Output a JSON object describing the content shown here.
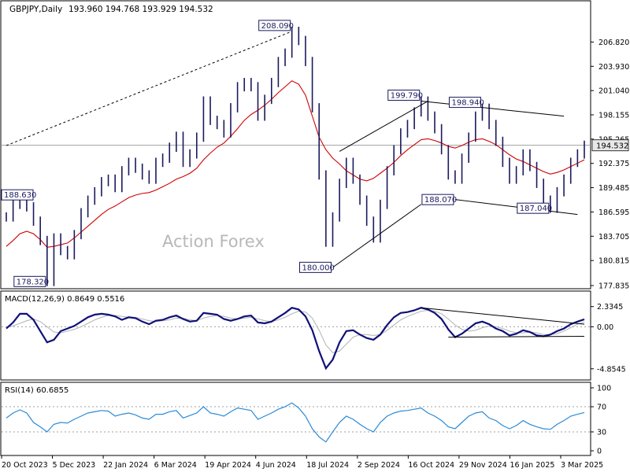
{
  "chart_data": {
    "type": "line",
    "header": {
      "symbol": "GBPJPY,Daily",
      "ohlc": "193.960 194.768 193.929 194.532"
    },
    "watermark": "Action Forex",
    "x_ticks": [
      "20 Oct 2023",
      "5 Dec 2023",
      "22 Jan 2024",
      "6 Mar 2024",
      "19 Apr 2024",
      "4 Jun 2024",
      "18 Jul 2024",
      "2 Sep 2024",
      "16 Oct 2024",
      "29 Nov 2024",
      "16 Jan 2025",
      "3 Mar 2025"
    ],
    "price": {
      "y_ticks": [
        "206.820",
        "203.930",
        "201.040",
        "198.155",
        "195.265",
        "192.375",
        "189.485",
        "186.595",
        "183.705",
        "180.815",
        "177.835"
      ],
      "ylim": [
        177.835,
        209.2
      ],
      "current": "194.532",
      "current_value": 194.532,
      "series": [
        {
          "name": "price",
          "values": [
            186.0,
            187.5,
            188.63,
            187.2,
            185.5,
            183.2,
            178.32,
            183.5,
            182.0,
            181.5,
            183.9,
            186.5,
            188.0,
            189.0,
            190.2,
            190.5,
            189.5,
            191.5,
            192.5,
            191.8,
            191.0,
            190.5,
            192.5,
            193.0,
            194.3,
            195.6,
            192.5,
            193.5,
            195.5,
            199.8,
            197.5,
            197.0,
            196.0,
            199.0,
            201.5,
            202.0,
            201.5,
            198.0,
            200.0,
            202.0,
            204.5,
            205.5,
            208.09,
            207.0,
            204.5,
            199.0,
            191.0,
            183.0,
            186.0,
            190.0,
            192.5,
            190.5,
            188.0,
            185.5,
            183.5,
            187.5,
            191.5,
            194.0,
            196.0,
            197.0,
            198.5,
            199.79,
            198.0,
            196.5,
            194.0,
            191.0,
            190.5,
            193.0,
            195.5,
            198.0,
            198.94,
            197.0,
            195.0,
            192.5,
            190.5,
            191.5,
            193.5,
            192.0,
            190.0,
            188.0,
            187.04,
            189.0,
            190.5,
            192.5,
            193.5,
            194.532
          ]
        },
        {
          "name": "moving-average",
          "values": [
            182.5,
            183.2,
            184.0,
            184.3,
            184.0,
            183.3,
            182.4,
            182.5,
            182.7,
            182.9,
            183.5,
            184.2,
            184.9,
            185.6,
            186.3,
            186.9,
            187.3,
            187.8,
            188.3,
            188.6,
            188.8,
            188.9,
            189.2,
            189.6,
            190.0,
            190.5,
            190.8,
            191.2,
            191.8,
            192.8,
            193.6,
            194.3,
            194.8,
            195.6,
            196.5,
            197.5,
            198.2,
            198.7,
            199.3,
            200.0,
            200.8,
            201.5,
            202.2,
            201.8,
            200.5,
            198.0,
            195.5,
            194.0,
            193.0,
            192.3,
            191.5,
            191.0,
            190.5,
            190.3,
            190.6,
            191.2,
            191.8,
            192.5,
            193.3,
            194.0,
            194.6,
            195.2,
            195.3,
            195.1,
            194.8,
            194.4,
            194.2,
            194.5,
            194.9,
            195.2,
            195.3,
            195.0,
            194.6,
            194.0,
            193.4,
            192.9,
            192.6,
            192.2,
            191.8,
            191.4,
            191.1,
            191.3,
            191.6,
            192.0,
            192.4,
            192.8
          ]
        }
      ],
      "annotations": [
        {
          "label": "208.090",
          "index": 42,
          "value": 208.09
        },
        {
          "label": "188.630",
          "index": 2,
          "value": 188.63
        },
        {
          "label": "178.320",
          "index": 6,
          "value": 178.32
        },
        {
          "label": "180.000",
          "index": 48,
          "value": 180.0
        },
        {
          "label": "199.790",
          "index": 61,
          "value": 199.79
        },
        {
          "label": "198.940",
          "index": 70,
          "value": 198.94
        },
        {
          "label": "188.070",
          "index": 66,
          "value": 188.07
        },
        {
          "label": "187.040",
          "index": 80,
          "value": 187.04
        }
      ],
      "trendlines": [
        {
          "points": [
            [
              0,
              194.5
            ],
            [
              42,
              208.09
            ]
          ],
          "dashed": true
        },
        {
          "points": [
            [
              48,
              180.0
            ],
            [
              61,
              187.5
            ]
          ],
          "dashed": false
        },
        {
          "points": [
            [
              49,
              193.8
            ],
            [
              62,
              199.79
            ]
          ],
          "dashed": false
        },
        {
          "points": [
            [
              61,
              199.79
            ],
            [
              82,
              198.0
            ]
          ],
          "dashed": false
        },
        {
          "points": [
            [
              66,
              188.07
            ],
            [
              84,
              186.3
            ]
          ],
          "dashed": false
        }
      ]
    },
    "macd": {
      "label": "MACD(12,26,9) 0.8649 0.5516",
      "y_ticks": [
        "2.3345",
        "0.00",
        "-4.8545"
      ],
      "ylim": [
        -5.6,
        3.4
      ],
      "main": [
        -0.2,
        0.5,
        1.5,
        1.5,
        0.8,
        -0.5,
        -1.8,
        -1.5,
        -0.5,
        -0.2,
        0.1,
        0.6,
        1.1,
        1.4,
        1.5,
        1.4,
        1.2,
        0.8,
        1.1,
        1.0,
        0.6,
        0.3,
        0.7,
        0.8,
        1.1,
        1.3,
        0.9,
        0.6,
        0.7,
        1.6,
        1.5,
        1.4,
        0.9,
        0.7,
        0.9,
        1.2,
        1.3,
        0.5,
        0.4,
        0.6,
        1.1,
        1.6,
        2.2,
        2.0,
        1.2,
        -0.4,
        -2.8,
        -4.8,
        -3.8,
        -1.8,
        -0.5,
        -0.4,
        -0.9,
        -1.3,
        -1.5,
        -0.9,
        0.2,
        1.1,
        1.6,
        1.7,
        1.9,
        2.2,
        2.0,
        1.6,
        0.9,
        -0.3,
        -1.2,
        -0.8,
        -0.2,
        0.4,
        0.6,
        0.3,
        -0.2,
        -0.5,
        -1.0,
        -0.8,
        -0.4,
        -0.6,
        -1.0,
        -1.1,
        -0.9,
        -0.5,
        -0.2,
        0.3,
        0.6,
        0.86
      ],
      "signal": [
        0.0,
        0.1,
        0.4,
        0.7,
        0.9,
        0.6,
        0.0,
        -0.6,
        -0.7,
        -0.5,
        -0.3,
        0.0,
        0.4,
        0.8,
        1.1,
        1.3,
        1.3,
        1.2,
        1.1,
        1.1,
        0.9,
        0.7,
        0.6,
        0.7,
        0.8,
        1.0,
        1.0,
        0.8,
        0.7,
        1.0,
        1.2,
        1.3,
        1.2,
        1.0,
        0.9,
        1.0,
        1.1,
        0.9,
        0.7,
        0.6,
        0.8,
        1.1,
        1.5,
        1.8,
        1.7,
        1.0,
        -0.4,
        -2.1,
        -3.0,
        -2.8,
        -2.0,
        -1.2,
        -0.9,
        -0.9,
        -1.0,
        -0.9,
        -0.4,
        0.2,
        0.8,
        1.2,
        1.5,
        1.8,
        1.9,
        1.8,
        1.5,
        0.9,
        0.2,
        -0.3,
        -0.5,
        -0.4,
        -0.1,
        0.1,
        0.0,
        -0.2,
        -0.5,
        -0.7,
        -0.7,
        -0.6,
        -0.7,
        -0.9,
        -0.9,
        -0.8,
        -0.5,
        -0.1,
        0.3,
        0.55
      ],
      "trendlines": [
        {
          "points": [
            [
              61,
              2.2
            ],
            [
              85,
              0.3
            ]
          ]
        },
        {
          "points": [
            [
              65,
              -1.2
            ],
            [
              85,
              -1.1
            ]
          ]
        }
      ]
    },
    "rsi": {
      "label": "RSI(14) 60.6855",
      "y_ticks": [
        "100",
        "70",
        "30",
        "0"
      ],
      "ylim": [
        0,
        100
      ],
      "values": [
        52,
        60,
        65,
        60,
        45,
        38,
        30,
        42,
        45,
        44,
        50,
        55,
        60,
        62,
        64,
        63,
        55,
        58,
        60,
        57,
        52,
        50,
        58,
        58,
        62,
        64,
        52,
        56,
        60,
        70,
        60,
        58,
        55,
        62,
        68,
        66,
        64,
        50,
        55,
        60,
        66,
        70,
        76,
        68,
        55,
        35,
        22,
        14,
        30,
        45,
        55,
        50,
        42,
        35,
        30,
        45,
        55,
        60,
        63,
        64,
        66,
        68,
        60,
        55,
        48,
        38,
        35,
        45,
        55,
        60,
        62,
        52,
        48,
        40,
        35,
        40,
        48,
        42,
        38,
        35,
        34,
        42,
        48,
        55,
        58,
        60.69
      ]
    }
  }
}
